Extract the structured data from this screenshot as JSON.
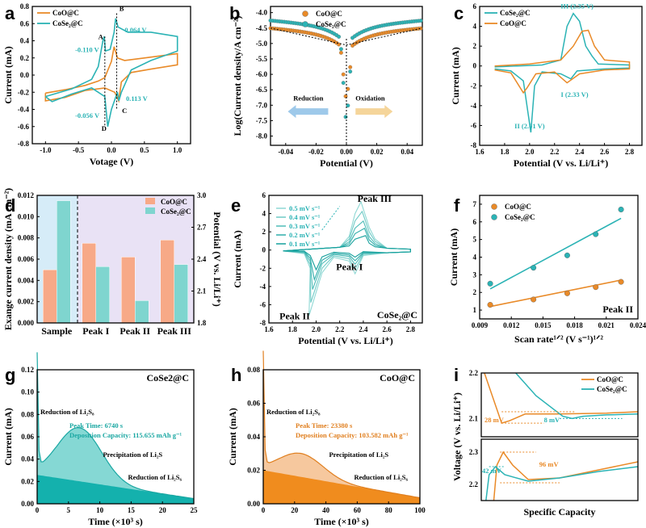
{
  "colors": {
    "orange": "#e98a28",
    "teal": "#2bb3b5",
    "orangeFill": "#f0a35b",
    "tealFill": "#56c6c2",
    "barOrange": "#f7a987",
    "barTeal": "#7fd5cf",
    "bgBlue": "#d6ecf8",
    "bgPurple": "#e9e2f5"
  },
  "chart_data": [
    {
      "id": "a",
      "type": "line",
      "xlabel": "Votage (V)",
      "ylabel": "Current (mA)",
      "xlim": [
        -1.2,
        1.2
      ],
      "ylim": [
        -0.8,
        0.8
      ],
      "xticks": [
        "-1.0",
        "-0.5",
        "0.0",
        "0.5",
        "1.0"
      ],
      "yticks": [
        "-0.8",
        "-0.6",
        "-0.4",
        "-0.2",
        "0.0",
        "0.2",
        "0.4",
        "0.6",
        "0.8"
      ],
      "series": [
        {
          "name": "CoO@C",
          "color": "orange",
          "points": [
            [
              -1,
              -0.21
            ],
            [
              -0.7,
              -0.17
            ],
            [
              -0.4,
              -0.12
            ],
            [
              -0.2,
              -0.07
            ],
            [
              -0.1,
              -0.03
            ],
            [
              0.0,
              0.16
            ],
            [
              0.04,
              0.33
            ],
            [
              0.09,
              0.2
            ],
            [
              0.2,
              0.17
            ],
            [
              0.5,
              0.2
            ],
            [
              1.0,
              0.25
            ],
            [
              1.0,
              0.12
            ],
            [
              0.6,
              0.07
            ],
            [
              0.3,
              0.03
            ],
            [
              0.15,
              -0.08
            ],
            [
              0.11,
              -0.3
            ],
            [
              0.05,
              -0.2
            ],
            [
              -0.1,
              -0.15
            ],
            [
              -0.4,
              -0.18
            ],
            [
              -0.7,
              -0.26
            ],
            [
              -1.0,
              -0.3
            ],
            [
              -1,
              -0.21
            ]
          ]
        },
        {
          "name": "CoSe2@C",
          "color": "teal",
          "points": [
            [
              -1,
              -0.25
            ],
            [
              -0.6,
              -0.16
            ],
            [
              -0.3,
              -0.05
            ],
            [
              -0.2,
              0.1
            ],
            [
              -0.13,
              0.4
            ],
            [
              -0.11,
              0.45
            ],
            [
              -0.09,
              0.28
            ],
            [
              -0.02,
              0.3
            ],
            [
              0.04,
              0.5
            ],
            [
              0.064,
              0.66
            ],
            [
              0.1,
              0.56
            ],
            [
              0.25,
              0.5
            ],
            [
              0.6,
              0.5
            ],
            [
              1.0,
              0.45
            ],
            [
              1.0,
              0.28
            ],
            [
              0.6,
              0.17
            ],
            [
              0.3,
              0.06
            ],
            [
              0.15,
              -0.2
            ],
            [
              0.113,
              -0.3
            ],
            [
              0.09,
              -0.2
            ],
            [
              0.0,
              -0.4
            ],
            [
              -0.056,
              -0.6
            ],
            [
              -0.1,
              -0.25
            ],
            [
              -0.3,
              -0.15
            ],
            [
              -0.6,
              -0.22
            ],
            [
              -0.9,
              -0.31
            ],
            [
              -1,
              -0.25
            ]
          ]
        }
      ],
      "annotations": [
        {
          "text": "A",
          "x": -0.2,
          "y": 0.42,
          "color": "black"
        },
        {
          "text": "B",
          "x": 0.12,
          "y": 0.75,
          "color": "black"
        },
        {
          "text": "-0.110 V",
          "x": -0.55,
          "y": 0.27,
          "color": "teal"
        },
        {
          "text": "0.064 V",
          "x": 0.2,
          "y": 0.5,
          "color": "teal"
        },
        {
          "text": "0.113 V",
          "x": 0.22,
          "y": -0.3,
          "color": "teal"
        },
        {
          "text": "-0.056 V",
          "x": -0.55,
          "y": -0.5,
          "color": "teal"
        },
        {
          "text": "C",
          "x": 0.16,
          "y": -0.44,
          "color": "black"
        },
        {
          "text": "D",
          "x": -0.15,
          "y": -0.65,
          "color": "black"
        }
      ]
    },
    {
      "id": "b",
      "type": "scatter",
      "xlabel": "Potential (V)",
      "ylabel": "Log(Current density/A cm⁻²)",
      "xlim": [
        -0.05,
        0.05
      ],
      "ylim": [
        -8.3,
        -3.8
      ],
      "xticks": [
        "-0.04",
        "-0.02",
        "0.00",
        "0.02",
        "0.04"
      ],
      "yticks": [
        "-4.0",
        "-4.5",
        "-5.0",
        "-5.5",
        "-6.0",
        "-6.5",
        "-7.0",
        "-7.5",
        "-8.0"
      ],
      "series": [
        {
          "name": "CoO@C",
          "color": "orange",
          "offset": -4.7,
          "min": -7.0
        },
        {
          "name": "CoSe2@C",
          "color": "teal",
          "offset": -4.45,
          "min": -7.8
        }
      ],
      "labels": {
        "reduction": "Reduction",
        "oxidation": "Oxidation"
      }
    },
    {
      "id": "c",
      "type": "line",
      "xlabel": "Potential (V vs. Li/Li⁺)",
      "ylabel": "Current (mA)",
      "xlim": [
        1.6,
        2.9
      ],
      "ylim": [
        -8,
        6
      ],
      "xticks": [
        "1.6",
        "1.8",
        "2.0",
        "2.2",
        "2.4",
        "2.6",
        "2.8"
      ],
      "yticks": [
        "6",
        "4",
        "2",
        "0",
        "-2",
        "-4",
        "-6",
        "-8"
      ],
      "series": [
        {
          "name": "CoSe2@C",
          "color": "teal",
          "points": [
            [
              1.72,
              -0.3
            ],
            [
              1.85,
              -0.5
            ],
            [
              1.95,
              -1.5
            ],
            [
              2.01,
              -6.7
            ],
            [
              2.04,
              -2
            ],
            [
              2.1,
              -0.6
            ],
            [
              2.25,
              -0.8
            ],
            [
              2.33,
              -1.3
            ],
            [
              2.38,
              -0.5
            ],
            [
              2.6,
              -0.3
            ],
            [
              2.8,
              -0.2
            ],
            [
              2.8,
              0.1
            ],
            [
              2.55,
              0.2
            ],
            [
              2.5,
              1.0
            ],
            [
              2.45,
              2.0
            ],
            [
              2.4,
              4.5
            ],
            [
              2.35,
              5.3
            ],
            [
              2.3,
              4.0
            ],
            [
              2.25,
              0.6
            ],
            [
              2.1,
              0.1
            ],
            [
              1.9,
              0.0
            ],
            [
              1.72,
              -0.1
            ]
          ]
        },
        {
          "name": "CoO@C",
          "color": "orange",
          "points": [
            [
              1.72,
              -0.4
            ],
            [
              1.85,
              -0.7
            ],
            [
              1.95,
              -2.7
            ],
            [
              1.98,
              -2.2
            ],
            [
              2.05,
              -0.8
            ],
            [
              2.2,
              -0.6
            ],
            [
              2.3,
              -1.7
            ],
            [
              2.4,
              -0.8
            ],
            [
              2.6,
              -0.4
            ],
            [
              2.8,
              -0.3
            ],
            [
              2.8,
              0.4
            ],
            [
              2.6,
              0.6
            ],
            [
              2.52,
              2.0
            ],
            [
              2.47,
              3.6
            ],
            [
              2.42,
              3.5
            ],
            [
              2.35,
              2.0
            ],
            [
              2.25,
              0.6
            ],
            [
              2.0,
              0.2
            ],
            [
              1.72,
              0.0
            ]
          ]
        }
      ],
      "annotations": [
        {
          "text": "III (2.35 V)",
          "x": 2.38,
          "y": 5.8,
          "color": "teal"
        },
        {
          "text": "I (2.33 V)",
          "x": 2.36,
          "y": -3.1,
          "color": "teal"
        },
        {
          "text": "II (2.01 V)",
          "x": 2.0,
          "y": -6.3,
          "color": "teal"
        }
      ]
    },
    {
      "id": "d",
      "type": "bar",
      "ylabel": "Exange current density (mA cm⁻²)",
      "y2label": "Potential (V vs. Li/Li⁺)",
      "ylim": [
        0,
        0.012
      ],
      "y2lim": [
        1.8,
        3.0
      ],
      "categories": [
        "Sample",
        "Peak I",
        "Peak II",
        "Peak III"
      ],
      "yticks": [
        "0.000",
        "0.002",
        "0.004",
        "0.006",
        "0.008",
        "0.010",
        "0.012"
      ],
      "y2ticks": [
        "1.8",
        "2.1",
        "2.4",
        "2.7",
        "3.0"
      ],
      "series": [
        {
          "name": "CoO@C",
          "color": "barOrange",
          "values": [
            0.005,
            2.55,
            2.42,
            2.58
          ]
        },
        {
          "name": "CoSe2@C",
          "color": "barTeal",
          "values": [
            0.0115,
            2.33,
            2.01,
            2.35
          ]
        }
      ]
    },
    {
      "id": "e",
      "type": "line",
      "xlabel": "Potential (V vs. Li/Li⁺)",
      "ylabel": "Current (mA)",
      "xlim": [
        1.6,
        2.9
      ],
      "ylim": [
        -8,
        6
      ],
      "xticks": [
        "1.6",
        "1.8",
        "2.0",
        "2.2",
        "2.4",
        "2.6",
        "2.8"
      ],
      "yticks": [
        "6",
        "4",
        "2",
        "0",
        "-2",
        "-4",
        "-6",
        "-8"
      ],
      "legend": [
        "0.5 mV s⁻¹",
        "0.4 mV s⁻¹",
        "0.3 mV s⁻¹",
        "0.2 mV s⁻¹",
        "0.1 mV s⁻¹"
      ],
      "amplitudes": [
        1.0,
        0.8,
        0.6,
        0.45,
        0.3
      ],
      "labels": {
        "peak3": "Peak III",
        "peak1": "Peak I",
        "peak2": "Peak II",
        "sample": "CoSe2@C"
      }
    },
    {
      "id": "f",
      "type": "scatter",
      "xlabel": "Scan rate¹ᐟ² (V s⁻¹)¹ᐟ²",
      "ylabel": "Current (mA)",
      "xlim": [
        0.009,
        0.024
      ],
      "ylim": [
        0.5,
        7.5
      ],
      "xticks": [
        "0.009",
        "0.012",
        "0.015",
        "0.018",
        "0.021",
        "0.024"
      ],
      "yticks": [
        "1",
        "2",
        "3",
        "4",
        "5",
        "6",
        "7"
      ],
      "series": [
        {
          "name": "CoO@C",
          "color": "orange",
          "x": [
            0.01,
            0.0141,
            0.0173,
            0.02,
            0.0224
          ],
          "y": [
            1.3,
            1.6,
            1.95,
            2.3,
            2.6
          ],
          "fit": [
            [
              0.01,
              1.2
            ],
            [
              0.0224,
              2.7
            ]
          ]
        },
        {
          "name": "CoSe2@C",
          "color": "teal",
          "x": [
            0.01,
            0.0141,
            0.0173,
            0.02,
            0.0224
          ],
          "y": [
            2.5,
            3.4,
            4.1,
            5.3,
            6.7
          ],
          "fit": [
            [
              0.01,
              2.2
            ],
            [
              0.0224,
              6.2
            ]
          ]
        }
      ],
      "labels": {
        "peak": "Peak II"
      }
    },
    {
      "id": "g",
      "type": "area",
      "xlabel": "Time (×10³ s)",
      "ylabel": "Current (mA)",
      "xlim": [
        0,
        25
      ],
      "ylim": [
        0,
        0.13
      ],
      "xticks": [
        "0",
        "5",
        "10",
        "15",
        "20",
        "25"
      ],
      "yticks": [
        "0.00",
        "0.02",
        "0.04",
        "0.06",
        "0.08",
        "0.10",
        "0.12"
      ],
      "labels": {
        "sample": "CoSe2@C",
        "reduction1": "Reduction of Li₂S₈",
        "peakTime": "Peak Time: 6740 s",
        "capacity": "Deposition Capacity: 115.655 mAh g⁻¹",
        "precip": "Precipitation of Li₂S",
        "reduction2": "Reduction of Li₂S₆"
      }
    },
    {
      "id": "h",
      "type": "area",
      "xlabel": "Time (×10³ s)",
      "ylabel": "Current (mA)",
      "xlim": [
        0,
        100
      ],
      "ylim": [
        0,
        0.08
      ],
      "xticks": [
        "0",
        "20",
        "40",
        "60",
        "80",
        "100"
      ],
      "yticks": [
        "0.00",
        "0.02",
        "0.04",
        "0.06",
        "0.08"
      ],
      "labels": {
        "sample": "CoO@C",
        "reduction1": "Reduction of Li₂S₈",
        "peakTime": "Peak Time: 23380 s",
        "capacity": "Deposition Capacity: 103.582 mAh g⁻¹",
        "precip": "Precipitation of Li₂S",
        "reduction2": "Reduction of Li₂S₆"
      }
    },
    {
      "id": "i",
      "type": "line",
      "xlabel": "Specific Capacity",
      "ylabel": "Voltage (V vs. Li/Li⁺)",
      "top": {
        "ylim": [
          2.06,
          2.2
        ],
        "yticks": [
          "2.2",
          "2.1"
        ],
        "orangeDip": "28 mV",
        "tealDip": "8 mV"
      },
      "bottom": {
        "ylim": [
          2.15,
          2.34
        ],
        "yticks": [
          "2.3",
          "2.2"
        ],
        "orangeBump": "96 mV",
        "tealBump": "42 mV"
      },
      "legend": [
        "CoO@C",
        "CoSe2@C"
      ]
    }
  ]
}
